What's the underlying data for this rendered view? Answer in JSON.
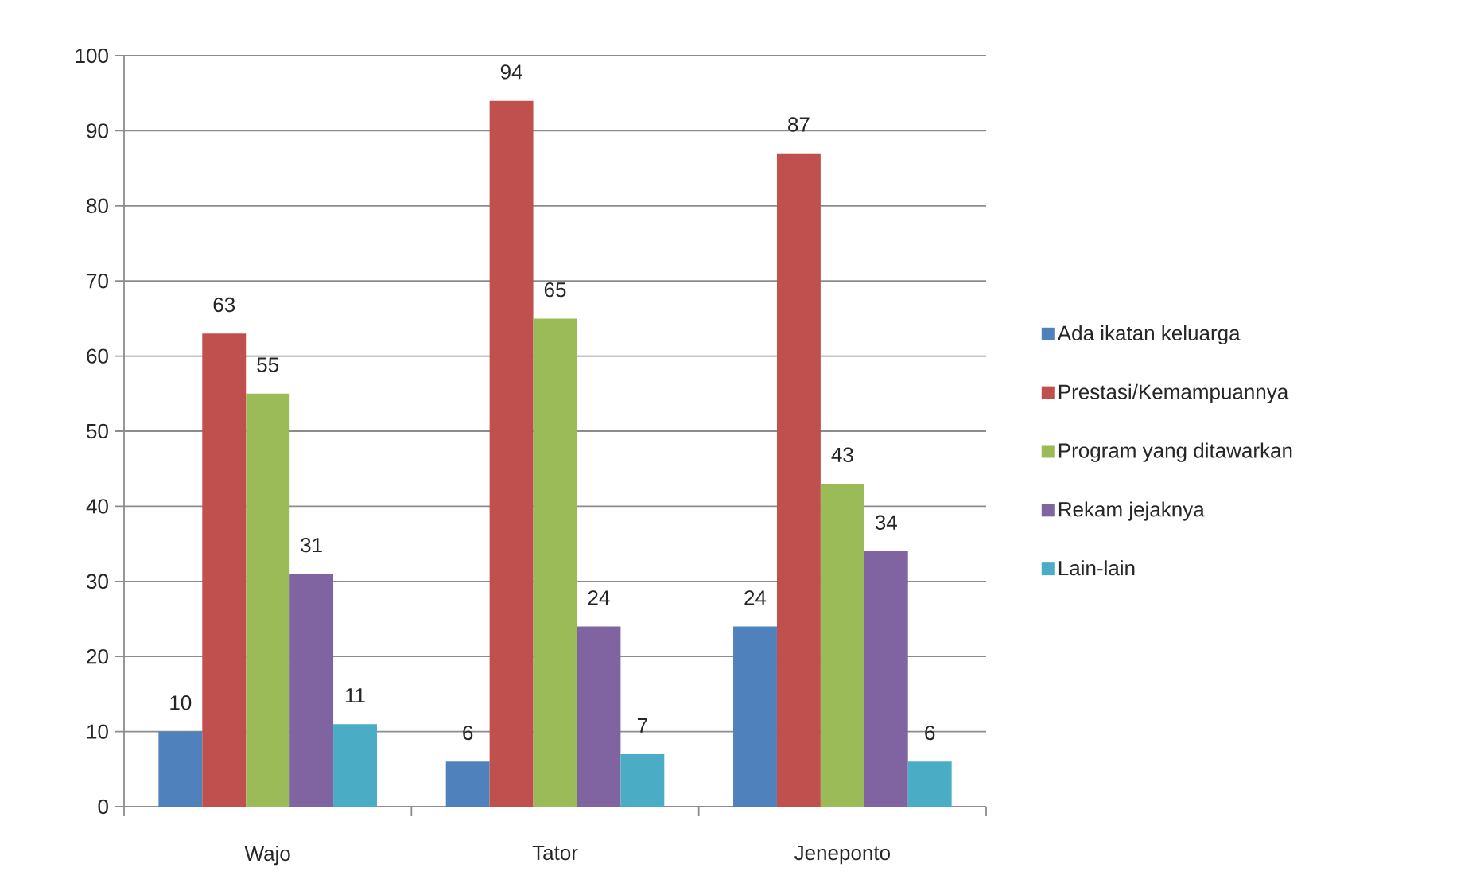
{
  "chart_data": {
    "type": "bar",
    "categories": [
      "Wajo",
      "Tator",
      "Jeneponto"
    ],
    "series": [
      {
        "name": "Ada ikatan keluarga",
        "color": "#4f81bd",
        "values": [
          10,
          6,
          24
        ]
      },
      {
        "name": "Prestasi/Kemampuannya",
        "color": "#c0504d",
        "values": [
          63,
          94,
          87
        ]
      },
      {
        "name": "Program yang ditawarkan",
        "color": "#9bbb59",
        "values": [
          55,
          65,
          43
        ]
      },
      {
        "name": "Rekam jejaknya",
        "color": "#8064a2",
        "values": [
          31,
          24,
          34
        ]
      },
      {
        "name": "Lain-lain",
        "color": "#4bacc6",
        "values": [
          11,
          7,
          6
        ]
      }
    ],
    "ylim": [
      0,
      100
    ],
    "yticks": [
      0,
      10,
      20,
      30,
      40,
      50,
      60,
      70,
      80,
      90,
      100
    ],
    "grid": "y",
    "data_labels": true,
    "legend": "right"
  }
}
